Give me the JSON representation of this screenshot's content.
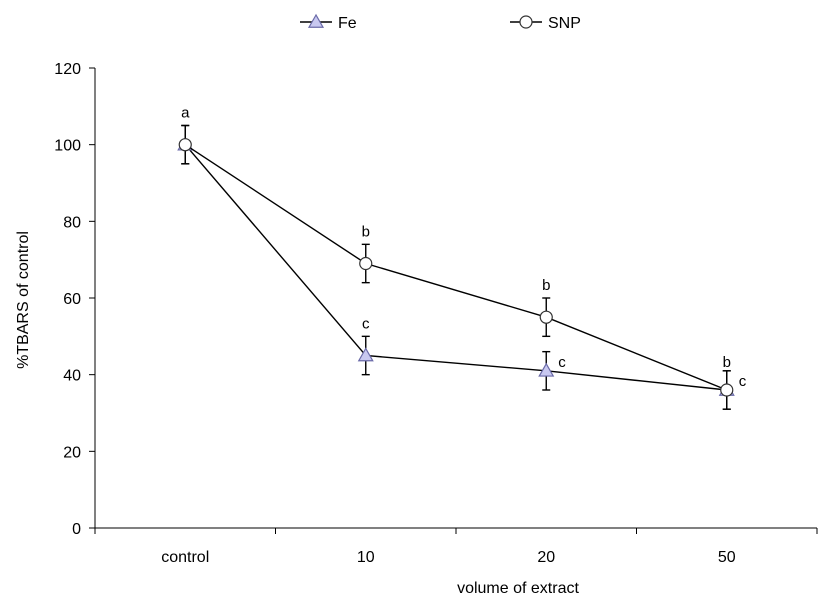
{
  "chart_data": {
    "type": "line",
    "title": "",
    "xlabel": "volume of extract",
    "ylabel": "%TBARS of control",
    "categories": [
      "control",
      "10",
      "20",
      "50"
    ],
    "ylim": [
      0,
      120
    ],
    "yticks": [
      0,
      20,
      40,
      60,
      80,
      100,
      120
    ],
    "grid": false,
    "legend_position": "top",
    "series": [
      {
        "name": "Fe",
        "marker": "triangle",
        "values": [
          100,
          45,
          41,
          36
        ],
        "errors": [
          5,
          5,
          5,
          5
        ],
        "labels": [
          "",
          "c",
          "c",
          "c"
        ]
      },
      {
        "name": "SNP",
        "marker": "circle",
        "values": [
          100,
          69,
          55,
          36
        ],
        "errors": [
          5,
          5,
          5,
          5
        ],
        "labels": [
          "a",
          "b",
          "b",
          "b"
        ]
      }
    ]
  }
}
